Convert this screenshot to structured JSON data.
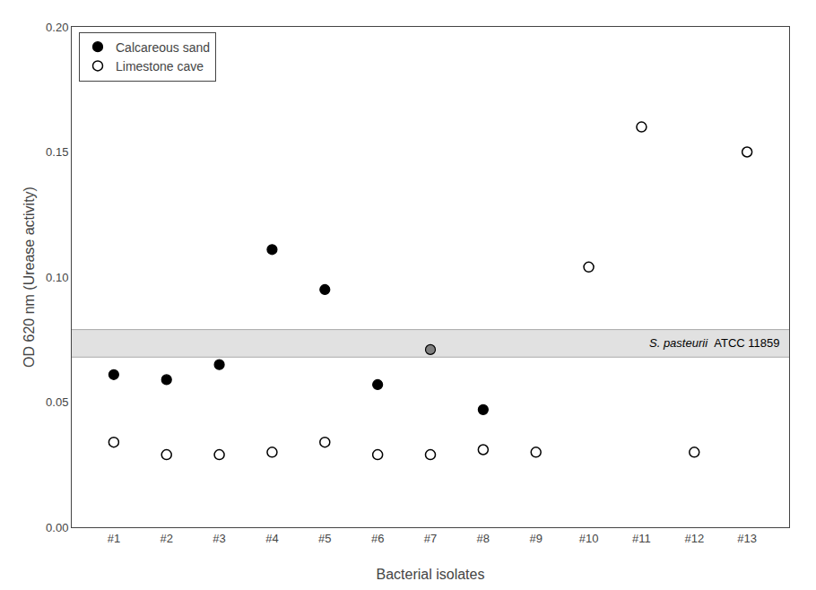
{
  "chart_data": {
    "type": "scatter",
    "categories": [
      "#1",
      "#2",
      "#3",
      "#4",
      "#5",
      "#6",
      "#7",
      "#8",
      "#9",
      "#10",
      "#11",
      "#12",
      "#13"
    ],
    "xlabel": "Bacterial isolates",
    "ylabel": "OD 620 nm (Urease activity)",
    "ylim": [
      0.0,
      0.2
    ],
    "yticks": [
      {
        "value": 0.0,
        "label": "0.00"
      },
      {
        "value": 0.05,
        "label": "0.05"
      },
      {
        "value": 0.1,
        "label": "0.10"
      },
      {
        "value": 0.15,
        "label": "0.15"
      },
      {
        "value": 0.2,
        "label": "0.20"
      }
    ],
    "grid": false,
    "legend": "upper left",
    "series": [
      {
        "name": "Calcareous sand",
        "x": [
          "#1",
          "#2",
          "#3",
          "#4",
          "#5",
          "#6",
          "#7",
          "#8"
        ],
        "values": [
          0.061,
          0.059,
          0.065,
          0.111,
          0.095,
          0.057,
          0.071,
          0.047
        ],
        "colors": [
          "#000000",
          "#000000",
          "#000000",
          "#000000",
          "#000000",
          "#000000",
          "#808080",
          "#000000"
        ],
        "marker": "circle"
      },
      {
        "name": "Limestone cave",
        "x": [
          "#1",
          "#2",
          "#3",
          "#4",
          "#5",
          "#6",
          "#7",
          "#8",
          "#9",
          "#10",
          "#11",
          "#12",
          "#13"
        ],
        "values": [
          0.034,
          0.029,
          0.029,
          0.03,
          0.034,
          0.029,
          0.029,
          0.031,
          0.03,
          0.104,
          0.16,
          0.03,
          0.15
        ],
        "color": "#000000",
        "marker": "circle-open"
      }
    ],
    "band": {
      "lower": 0.068,
      "upper": 0.079,
      "color": "#aaaaaa",
      "label_parts": [
        {
          "text": "S. pasteurii",
          "style": "italic"
        },
        {
          "text": "  ATCC 11859",
          "style": "normal"
        }
      ]
    }
  }
}
